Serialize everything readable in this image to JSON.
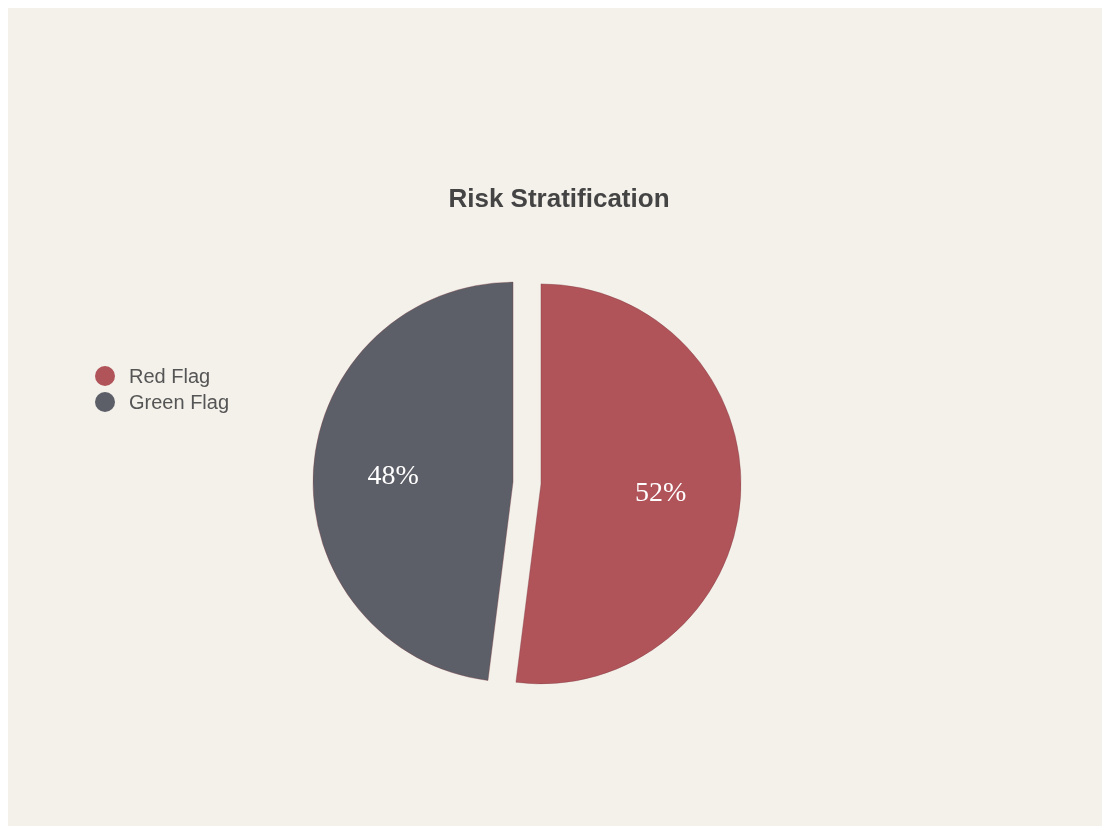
{
  "chart_data": {
    "type": "pie",
    "title": "Risk Stratification",
    "categories": [
      "Red Flag",
      "Green Flag"
    ],
    "values": [
      52,
      48
    ],
    "colors": [
      "#b0545a",
      "#5d5f68"
    ],
    "value_labels": [
      "52%",
      "48%"
    ],
    "legend": "left"
  }
}
